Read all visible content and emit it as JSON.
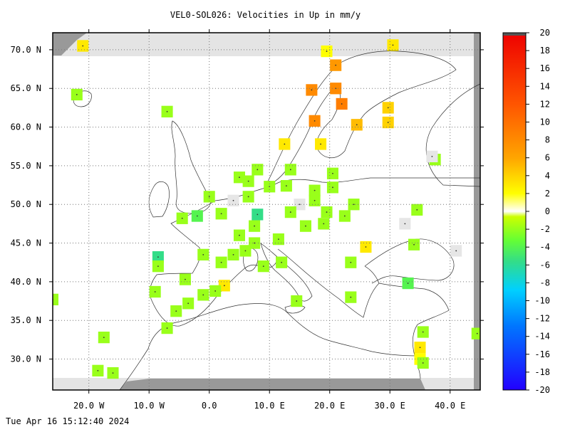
{
  "title": "VEL0-SOL026: Velocities in Up in mm/y",
  "timestamp": "Tue Apr 16 15:12:40 2024",
  "map": {
    "lon_range": [
      -26,
      45
    ],
    "lat_range": [
      26,
      72.2
    ],
    "grid": "dotted",
    "lon_ticks": [
      {
        "value": -20,
        "label": "20.0 W"
      },
      {
        "value": -10,
        "label": "10.0 W"
      },
      {
        "value": 0,
        "label": "0.0"
      },
      {
        "value": 10,
        "label": "10.0 E"
      },
      {
        "value": 20,
        "label": "20.0 E"
      },
      {
        "value": 30,
        "label": "30.0 E"
      },
      {
        "value": 40,
        "label": "40.0 E"
      }
    ],
    "lat_ticks": [
      {
        "value": 70,
        "label": "70.0 N"
      },
      {
        "value": 65,
        "label": "65.0 N"
      },
      {
        "value": 60,
        "label": "60.0 N"
      },
      {
        "value": 55,
        "label": "55.0 N"
      },
      {
        "value": 50,
        "label": "50.0 N"
      },
      {
        "value": 45,
        "label": "45.0 N"
      },
      {
        "value": 40,
        "label": "40.0 N"
      },
      {
        "value": 35,
        "label": "35.0 N"
      },
      {
        "value": 30,
        "label": "30.0 N"
      }
    ]
  },
  "colorbar": {
    "range": [
      -20,
      20
    ],
    "tick_labels": [
      "20",
      "18",
      "16",
      "14",
      "12",
      "10",
      "8",
      "6",
      "4",
      "2",
      "0",
      "-2",
      "-4",
      "-6",
      "-8",
      "-10",
      "-12",
      "-14",
      "-16",
      "-18",
      "-20"
    ]
  },
  "cells": [
    {
      "lon": -21,
      "lat": 70.5,
      "v": 3
    },
    {
      "lon": -22,
      "lat": 64.2,
      "v": -1
    },
    {
      "lon": -7,
      "lat": 62,
      "v": -1
    },
    {
      "lon": 17,
      "lat": 64.8,
      "v": 8
    },
    {
      "lon": 21,
      "lat": 68,
      "v": 7
    },
    {
      "lon": 21,
      "lat": 65,
      "v": 8
    },
    {
      "lon": 22,
      "lat": 63,
      "v": 9
    },
    {
      "lon": 17.5,
      "lat": 60.8,
      "v": 8
    },
    {
      "lon": 24.5,
      "lat": 60.3,
      "v": 5
    },
    {
      "lon": 29.7,
      "lat": 62.5,
      "v": 4
    },
    {
      "lon": 29.7,
      "lat": 60.6,
      "v": 4
    },
    {
      "lon": 30.5,
      "lat": 70.6,
      "v": 3
    },
    {
      "lon": 19.5,
      "lat": 69.8,
      "v": 2
    },
    {
      "lon": 12.5,
      "lat": 57.8,
      "v": 3
    },
    {
      "lon": 18.5,
      "lat": 57.8,
      "v": 3
    },
    {
      "lon": 13.5,
      "lat": 54.5,
      "v": -1
    },
    {
      "lon": 8,
      "lat": 54.5,
      "v": -1
    },
    {
      "lon": 5,
      "lat": 53.5,
      "v": -1
    },
    {
      "lon": 6.5,
      "lat": 53,
      "v": -1
    },
    {
      "lon": 20.5,
      "lat": 54,
      "v": -1
    },
    {
      "lon": 20.5,
      "lat": 52.2,
      "v": -1
    },
    {
      "lon": 10,
      "lat": 52.3,
      "v": -1
    },
    {
      "lon": 12.8,
      "lat": 52.4,
      "v": -1
    },
    {
      "lon": 17.5,
      "lat": 51.8,
      "v": -1
    },
    {
      "lon": 17.5,
      "lat": 50.5,
      "v": -1
    },
    {
      "lon": 0,
      "lat": 51,
      "v": -1
    },
    {
      "lon": 6.5,
      "lat": 51,
      "v": -1
    },
    {
      "lon": 4,
      "lat": 50.5,
      "v": 0
    },
    {
      "lon": 15,
      "lat": 50,
      "v": 0
    },
    {
      "lon": 24,
      "lat": 50,
      "v": -1
    },
    {
      "lon": 2,
      "lat": 48.8,
      "v": -1
    },
    {
      "lon": -2,
      "lat": 48.5,
      "v": -2
    },
    {
      "lon": -4.5,
      "lat": 48.2,
      "v": -1
    },
    {
      "lon": 8,
      "lat": 48.7,
      "v": -3
    },
    {
      "lon": 13.5,
      "lat": 49,
      "v": -1
    },
    {
      "lon": 19.5,
      "lat": 49,
      "v": -1
    },
    {
      "lon": 22.5,
      "lat": 48.5,
      "v": -1
    },
    {
      "lon": 16,
      "lat": 47.2,
      "v": -1
    },
    {
      "lon": 19,
      "lat": 47.5,
      "v": -1
    },
    {
      "lon": 7.5,
      "lat": 47.2,
      "v": -1
    },
    {
      "lon": 34.5,
      "lat": 49.3,
      "v": -1
    },
    {
      "lon": 32.5,
      "lat": 47.5,
      "v": 0
    },
    {
      "lon": 5,
      "lat": 46,
      "v": -1
    },
    {
      "lon": 7.5,
      "lat": 45,
      "v": -1
    },
    {
      "lon": 11.5,
      "lat": 45.5,
      "v": -1
    },
    {
      "lon": 6,
      "lat": 44,
      "v": -1
    },
    {
      "lon": 4,
      "lat": 43.5,
      "v": -1
    },
    {
      "lon": 2,
      "lat": 42.5,
      "v": -1
    },
    {
      "lon": -1,
      "lat": 43.5,
      "v": -1
    },
    {
      "lon": -8.5,
      "lat": 43.2,
      "v": -3
    },
    {
      "lon": -8.5,
      "lat": 42,
      "v": -1
    },
    {
      "lon": 9,
      "lat": 42,
      "v": -1
    },
    {
      "lon": 12,
      "lat": 42.5,
      "v": -1
    },
    {
      "lon": 26,
      "lat": 44.5,
      "v": 3
    },
    {
      "lon": 23.5,
      "lat": 42.5,
      "v": -1
    },
    {
      "lon": 34,
      "lat": 44.8,
      "v": -1
    },
    {
      "lon": 41,
      "lat": 44,
      "v": 0
    },
    {
      "lon": -4,
      "lat": 40.3,
      "v": -1
    },
    {
      "lon": 2.5,
      "lat": 39.5,
      "v": 3
    },
    {
      "lon": 1,
      "lat": 38.8,
      "v": -1
    },
    {
      "lon": -9,
      "lat": 38.7,
      "v": -1
    },
    {
      "lon": -3.5,
      "lat": 37.2,
      "v": -1
    },
    {
      "lon": -5.5,
      "lat": 36.2,
      "v": -1
    },
    {
      "lon": -1,
      "lat": 38.3,
      "v": -1
    },
    {
      "lon": 23.5,
      "lat": 38,
      "v": -1
    },
    {
      "lon": 14.5,
      "lat": 37.5,
      "v": -1
    },
    {
      "lon": 33,
      "lat": 39.8,
      "v": -2
    },
    {
      "lon": -7,
      "lat": 34,
      "v": -1
    },
    {
      "lon": -26,
      "lat": 37.7,
      "v": -1
    },
    {
      "lon": -17.5,
      "lat": 32.8,
      "v": -1
    },
    {
      "lon": 35.5,
      "lat": 33.5,
      "v": -1
    },
    {
      "lon": 35,
      "lat": 31.5,
      "v": 3
    },
    {
      "lon": 35,
      "lat": 30,
      "v": 2
    },
    {
      "lon": 35.5,
      "lat": 29.5,
      "v": -1
    },
    {
      "lon": 44.5,
      "lat": 33.3,
      "v": -1
    },
    {
      "lon": -18.5,
      "lat": 28.5,
      "v": -1
    },
    {
      "lon": -16,
      "lat": 28.2,
      "v": -1
    },
    {
      "lon": 37.5,
      "lat": 55.8,
      "v": -1
    },
    {
      "lon": 37,
      "lat": 56.2,
      "v": 0
    }
  ]
}
